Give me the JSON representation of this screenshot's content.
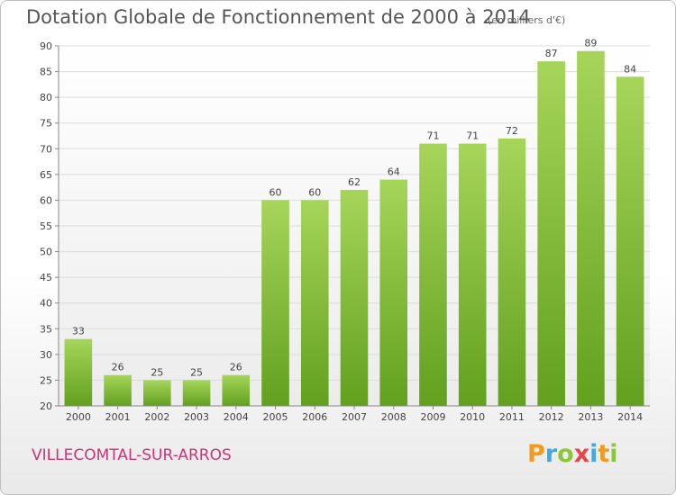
{
  "header": {
    "title": "Dotation Globale de Fonctionnement de 2000 à 2014",
    "subtitle": "(en milliers d'€)"
  },
  "footer": {
    "city": "VILLECOMTAL-SUR-ARROS",
    "logo_letters": [
      "P",
      "r",
      "o",
      "x",
      "i",
      "t",
      "i"
    ],
    "logo_colors": [
      "#f29a1d",
      "#3fa9e0",
      "#8cc63f",
      "#e6454c",
      "#3fa9e0",
      "#f29a1d",
      "#8cc63f"
    ]
  },
  "chart_data": {
    "type": "bar",
    "title": "Dotation Globale de Fonctionnement de 2000 à 2014",
    "subtitle": "(en milliers d'€)",
    "categories": [
      "2000",
      "2001",
      "2002",
      "2003",
      "2004",
      "2005",
      "2006",
      "2007",
      "2008",
      "2009",
      "2010",
      "2011",
      "2012",
      "2013",
      "2014"
    ],
    "values": [
      33,
      26,
      25,
      25,
      26,
      60,
      60,
      62,
      64,
      71,
      71,
      72,
      87,
      89,
      84
    ],
    "ylim": [
      20,
      90
    ],
    "yticks": [
      20,
      25,
      30,
      35,
      40,
      45,
      50,
      55,
      60,
      65,
      70,
      75,
      80,
      85,
      90
    ],
    "grid": true,
    "bar_color_top": "#a6d55a",
    "bar_color_bottom": "#62a01e"
  }
}
